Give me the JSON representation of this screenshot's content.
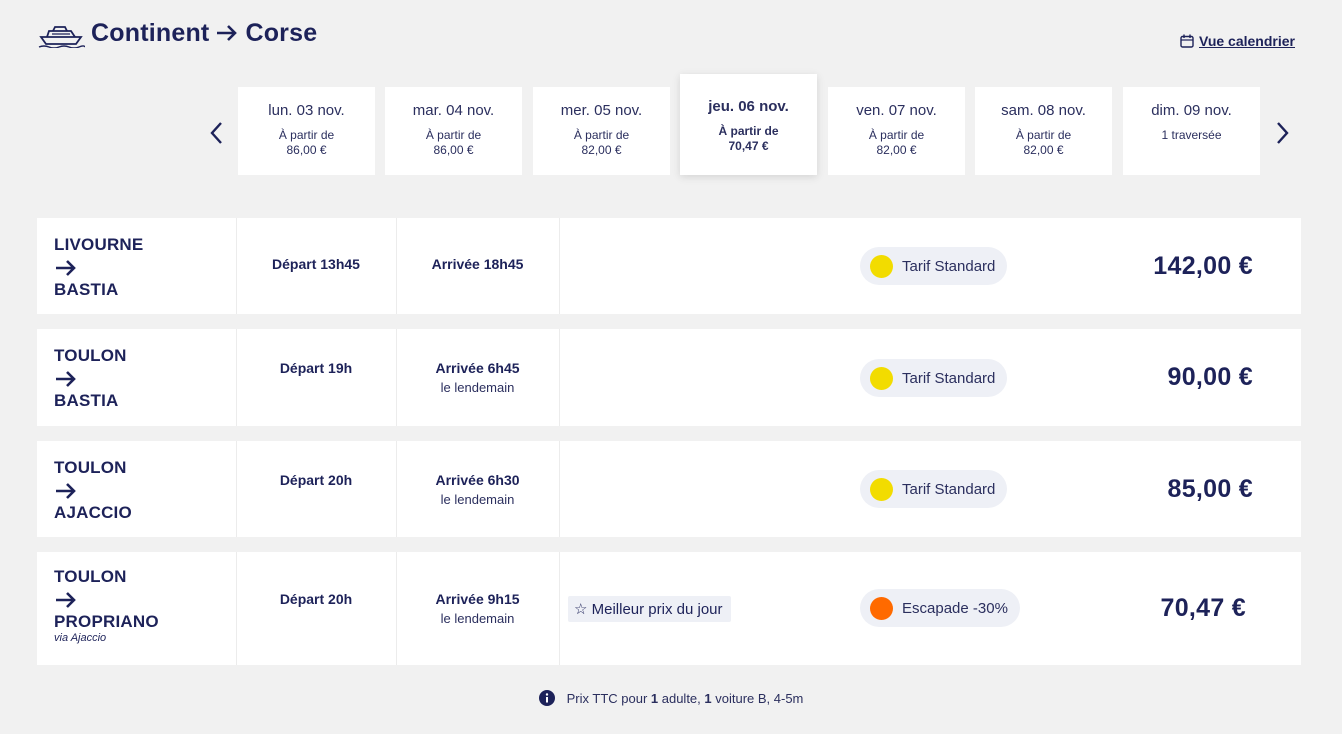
{
  "header": {
    "origin": "Continent",
    "destination": "Corse",
    "calendar_link": "Vue calendrier"
  },
  "dates": [
    {
      "day": "lun. 03 nov.",
      "line1": "À partir de",
      "line2": "86,00 €",
      "selected": false
    },
    {
      "day": "mar. 04 nov.",
      "line1": "À partir de",
      "line2": "86,00 €",
      "selected": false
    },
    {
      "day": "mer. 05 nov.",
      "line1": "À partir de",
      "line2": "82,00 €",
      "selected": false
    },
    {
      "day": "jeu. 06 nov.",
      "line1": "À partir de",
      "line2": "70,47 €",
      "selected": true
    },
    {
      "day": "ven. 07 nov.",
      "line1": "À partir de",
      "line2": "82,00 €",
      "selected": false
    },
    {
      "day": "sam. 08 nov.",
      "line1": "À partir de",
      "line2": "82,00 €",
      "selected": false
    },
    {
      "day": "dim. 09 nov.",
      "line1": "1 traversée",
      "line2": "",
      "selected": false
    }
  ],
  "trips": [
    {
      "from": "LIVOURNE",
      "to": "BASTIA",
      "via": "",
      "departure": "Départ 13h45",
      "arrival": "Arrivée 18h45",
      "arrival_note": "",
      "best_badge": "",
      "tariff": "Tarif Standard",
      "tariff_color": "#f2dc00",
      "price": "142,00 €"
    },
    {
      "from": "TOULON",
      "to": "BASTIA",
      "via": "",
      "departure": "Départ 19h",
      "arrival": "Arrivée 6h45",
      "arrival_note": "le lendemain",
      "best_badge": "",
      "tariff": "Tarif Standard",
      "tariff_color": "#f2dc00",
      "price": "90,00 €"
    },
    {
      "from": "TOULON",
      "to": "AJACCIO",
      "via": "",
      "departure": "Départ 20h",
      "arrival": "Arrivée 6h30",
      "arrival_note": "le lendemain",
      "best_badge": "",
      "tariff": "Tarif Standard",
      "tariff_color": "#f2dc00",
      "price": "85,00 €"
    },
    {
      "from": "TOULON",
      "to": "PROPRIANO",
      "via": "via Ajaccio",
      "departure": "Départ 20h",
      "arrival": "Arrivée 9h15",
      "arrival_note": "le lendemain",
      "best_badge": "☆ Meilleur prix du jour",
      "tariff": "Escapade -30%",
      "tariff_color": "#ff6a00",
      "price": "70,47 €"
    }
  ],
  "footer": {
    "note_prefix": "Prix TTC pour ",
    "adults": "1",
    "adults_label": " adulte, ",
    "cars": "1",
    "cars_label": " voiture B, 4-5m"
  }
}
